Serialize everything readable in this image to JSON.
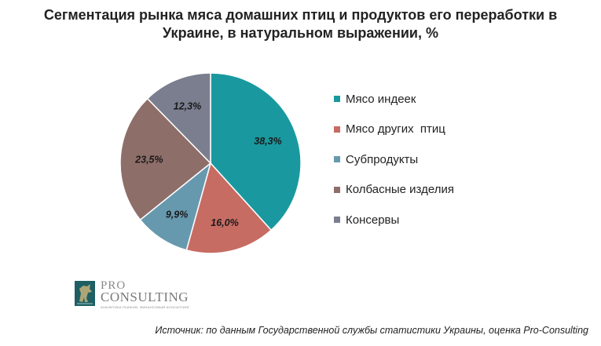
{
  "chart_data": {
    "type": "pie",
    "title": "Сегментация рынка мяса домашних птиц и продуктов его переработки в Украине, в натуральном выражении, %",
    "title_lines": [
      "Сегментация рынка мяса домашних птиц и продуктов его переработки в",
      "Украине, в натуральном выражении, %"
    ],
    "categories": [
      "Мясо индеек",
      "Мясо других  птиц",
      "Субпродукты",
      "Колбасные изделия",
      "Консервы"
    ],
    "values": [
      38.3,
      16.0,
      9.9,
      23.5,
      12.3
    ],
    "value_labels": [
      "38,3%",
      "16,0%",
      "9,9%",
      "23,5%",
      "12,3%"
    ],
    "colors": [
      "#19999F",
      "#C76C63",
      "#6799AE",
      "#8E6E69",
      "#7A7E8E"
    ],
    "start_angle": "12 o'clock",
    "direction": "clockwise",
    "legend_position": "right"
  },
  "logo": {
    "pro": "PRO",
    "consulting": "CONSULTING",
    "tagline": "АНАЛИТИКА РЫНКОВ. ФИНАНСОВЫЙ КОНСАЛТИНГ"
  },
  "source": "Источник: по данным Государственной службы статистики Украины, оценка Pro-Consulting"
}
